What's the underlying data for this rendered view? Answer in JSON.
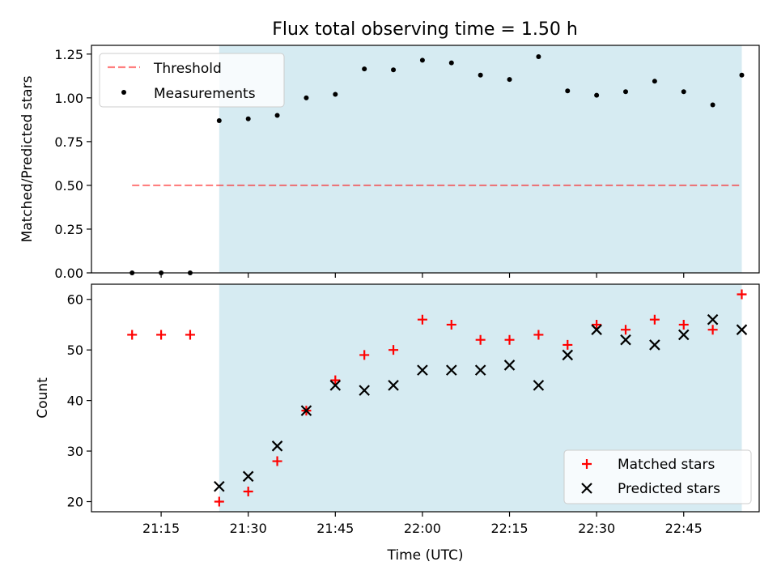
{
  "title": "Flux total observing time = 1.50 h",
  "colors": {
    "observing_span": "#add8e6",
    "threshold": "#ff0000",
    "measurements": "#000000",
    "matched": "#ff0000",
    "predicted": "#000000"
  },
  "chart_data": [
    {
      "type": "scatter",
      "ylabel": "Matched/Predicted stars",
      "ylim": [
        0,
        1.3
      ],
      "yticks": [
        "0.00",
        "0.25",
        "0.50",
        "0.75",
        "1.00",
        "1.25"
      ],
      "xlim": [
        "21:03",
        "22:58"
      ],
      "shaded_span": {
        "x_start": "21:25",
        "x_end": "22:55"
      },
      "threshold": {
        "name": "Threshold",
        "value": 0.5,
        "x_start": "21:10",
        "x_end": "22:55",
        "style": "dashed"
      },
      "legend": {
        "position": "upper-left",
        "entries": [
          "Threshold",
          "Measurements"
        ]
      },
      "series": [
        {
          "name": "Measurements",
          "marker": "dot",
          "x": [
            "21:10",
            "21:15",
            "21:20",
            "21:25",
            "21:30",
            "21:35",
            "21:40",
            "21:45",
            "21:50",
            "21:55",
            "22:00",
            "22:05",
            "22:10",
            "22:15",
            "22:20",
            "22:25",
            "22:30",
            "22:35",
            "22:40",
            "22:45",
            "22:50",
            "22:55"
          ],
          "y": [
            0,
            0,
            0,
            0.87,
            0.88,
            0.9,
            1.0,
            1.02,
            1.165,
            1.16,
            1.215,
            1.2,
            1.13,
            1.105,
            1.235,
            1.04,
            1.015,
            1.035,
            1.095,
            1.035,
            0.96,
            1.13
          ]
        }
      ]
    },
    {
      "type": "scatter",
      "xlabel": "Time (UTC)",
      "ylabel": "Count",
      "ylim": [
        18,
        63
      ],
      "yticks": [
        "20",
        "30",
        "40",
        "50",
        "60"
      ],
      "xlim": [
        "21:03",
        "22:58"
      ],
      "xticks": [
        "21:15",
        "21:30",
        "21:45",
        "22:00",
        "22:15",
        "22:30",
        "22:45"
      ],
      "shaded_span": {
        "x_start": "21:25",
        "x_end": "22:55"
      },
      "legend": {
        "position": "lower-right",
        "entries": [
          "Matched stars",
          "Predicted stars"
        ]
      },
      "series": [
        {
          "name": "Matched stars",
          "marker": "plus",
          "x": [
            "21:10",
            "21:15",
            "21:20",
            "21:25",
            "21:30",
            "21:35",
            "21:40",
            "21:45",
            "21:50",
            "21:55",
            "22:00",
            "22:05",
            "22:10",
            "22:15",
            "22:20",
            "22:25",
            "22:30",
            "22:35",
            "22:40",
            "22:45",
            "22:50",
            "22:55"
          ],
          "y": [
            53,
            53,
            53,
            20,
            22,
            28,
            38,
            44,
            49,
            50,
            56,
            55,
            52,
            52,
            53,
            51,
            55,
            54,
            56,
            55,
            54,
            61
          ]
        },
        {
          "name": "Predicted stars",
          "marker": "x",
          "x": [
            "21:25",
            "21:30",
            "21:35",
            "21:40",
            "21:45",
            "21:50",
            "21:55",
            "22:00",
            "22:05",
            "22:10",
            "22:15",
            "22:20",
            "22:25",
            "22:30",
            "22:35",
            "22:40",
            "22:45",
            "22:50",
            "22:55"
          ],
          "y": [
            23,
            25,
            31,
            38,
            43,
            42,
            43,
            46,
            46,
            46,
            47,
            43,
            49,
            54,
            52,
            51,
            53,
            56,
            54
          ]
        }
      ]
    }
  ]
}
